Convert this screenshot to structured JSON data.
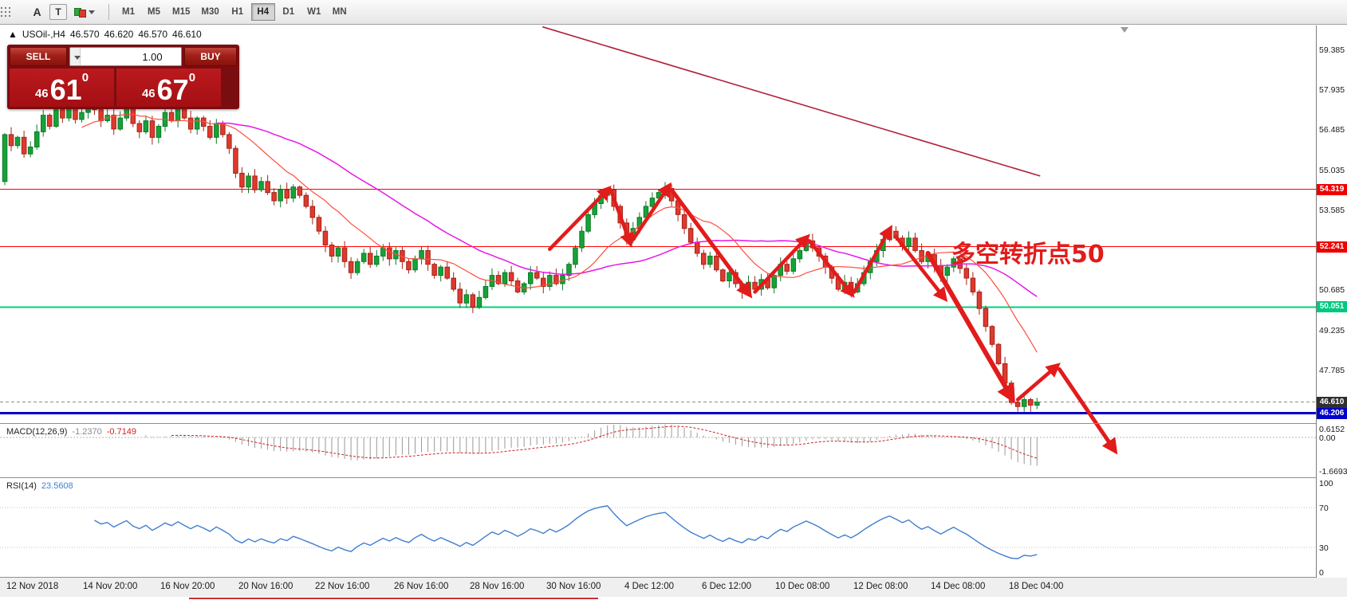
{
  "toolbar": {
    "icon_a": "A",
    "icon_t": "T",
    "timeframes": [
      "M1",
      "M5",
      "M15",
      "M30",
      "H1",
      "H4",
      "D1",
      "W1",
      "MN"
    ],
    "active_timeframe": "H4"
  },
  "symbol_header": {
    "arrow": "▲",
    "symbol": "USOil-,H4",
    "open": "46.570",
    "high": "46.620",
    "low": "46.570",
    "close": "46.610"
  },
  "trade_widget": {
    "sell_label": "SELL",
    "buy_label": "BUY",
    "volume": "1.00",
    "sell_small": "46",
    "sell_big": "61",
    "sell_sup": "0",
    "buy_small": "46",
    "buy_big": "67",
    "buy_sup": "0"
  },
  "annotation": {
    "text": "多空转折点50"
  },
  "price_axis": {
    "labels": [
      "59.385",
      "57.935",
      "56.485",
      "55.035",
      "53.585",
      "52.135",
      "50.685",
      "49.235",
      "47.785",
      "46.335"
    ],
    "chips": [
      {
        "value": "54.319",
        "price": 54.319,
        "bg": "#ee0000",
        "fg": "#ffffff"
      },
      {
        "value": "52.241",
        "price": 52.241,
        "bg": "#ee0000",
        "fg": "#ffffff"
      },
      {
        "value": "50.051",
        "price": 50.051,
        "bg": "#00c87d",
        "fg": "#ffffff"
      },
      {
        "value": "46.610",
        "price": 46.61,
        "bg": "#2f2f2f",
        "fg": "#ffffff"
      },
      {
        "value": "46.206",
        "price": 46.206,
        "bg": "#0000cc",
        "fg": "#ffffff"
      }
    ]
  },
  "chart_data": {
    "type": "candlestick",
    "symbol": "USOil-",
    "timeframe": "H4",
    "price_min": 45.85,
    "price_max": 60.25,
    "first_open": 54.6,
    "span_frac": 0.79,
    "up_color": "#16a237",
    "down_color": "#de3a2e",
    "closes": [
      56.3,
      55.9,
      56.2,
      55.6,
      55.85,
      56.4,
      57.0,
      56.6,
      57.2,
      56.9,
      57.4,
      56.85,
      57.1,
      57.6,
      57.2,
      56.8,
      57.0,
      56.5,
      56.9,
      57.3,
      56.7,
      56.4,
      56.8,
      56.2,
      56.6,
      57.1,
      56.8,
      57.3,
      56.9,
      56.5,
      56.9,
      56.6,
      56.2,
      56.7,
      56.3,
      55.8,
      54.9,
      54.4,
      54.8,
      54.3,
      54.6,
      54.2,
      53.9,
      54.3,
      54.0,
      54.4,
      54.1,
      53.7,
      53.3,
      52.8,
      52.3,
      51.9,
      52.2,
      51.7,
      51.3,
      51.7,
      52.0,
      51.6,
      51.9,
      52.2,
      51.8,
      52.1,
      51.7,
      51.4,
      51.8,
      52.1,
      51.6,
      51.2,
      51.5,
      51.1,
      50.7,
      50.2,
      50.5,
      50.05,
      50.4,
      50.8,
      51.2,
      50.9,
      51.3,
      51.0,
      50.6,
      50.9,
      51.3,
      51.1,
      50.8,
      51.2,
      50.9,
      51.2,
      51.6,
      52.2,
      52.8,
      53.4,
      53.8,
      54.1,
      54.3,
      53.7,
      53.1,
      52.5,
      52.9,
      53.3,
      53.7,
      54.0,
      54.2,
      54.35,
      53.9,
      53.4,
      52.9,
      52.4,
      52.0,
      51.6,
      51.9,
      51.4,
      51.0,
      51.3,
      50.9,
      50.6,
      50.95,
      50.7,
      51.05,
      50.75,
      51.2,
      51.6,
      51.35,
      51.8,
      52.1,
      52.45,
      52.2,
      51.9,
      51.5,
      51.1,
      50.7,
      50.95,
      50.6,
      50.9,
      51.3,
      51.7,
      52.1,
      52.5,
      52.8,
      52.55,
      52.25,
      52.55,
      52.1,
      51.7,
      51.95,
      51.55,
      51.2,
      51.5,
      51.8,
      51.45,
      51.1,
      50.6,
      50.0,
      49.35,
      48.7,
      48.0,
      47.3,
      46.6,
      46.45,
      46.7,
      46.5,
      46.61
    ],
    "h_lines": [
      {
        "price": 54.319,
        "color": "#ff0000",
        "width": 1.2
      },
      {
        "price": 52.241,
        "color": "#ff0000",
        "width": 1.2
      },
      {
        "price": 50.051,
        "color": "#00d17e",
        "width": 1.8
      },
      {
        "price": 46.61,
        "color": "#8c8c8c",
        "width": 1,
        "dash": "4,3"
      },
      {
        "price": 46.206,
        "color": "#0000cc",
        "width": 3
      }
    ],
    "trendline": {
      "color": "#b12038",
      "width": 1.6,
      "from": [
        0.412,
        60.2
      ],
      "to": [
        0.79,
        54.8
      ]
    },
    "ma_fast": {
      "period": 13,
      "color": "#ff4d3d"
    },
    "ma_slow": {
      "period": 34,
      "color": "#e816e8"
    },
    "arrow_color": "#e21b1b",
    "arrows": [
      {
        "from": [
          85,
          52.15
        ],
        "to": [
          94,
          54.3
        ],
        "w": 4.5
      },
      {
        "from": [
          94.5,
          54.3
        ],
        "to": [
          97.5,
          52.4
        ],
        "w": 4.5
      },
      {
        "from": [
          98,
          52.5
        ],
        "to": [
          103.5,
          54.4
        ],
        "w": 4.5
      },
      {
        "from": [
          104,
          54.3
        ],
        "to": [
          116,
          50.55
        ],
        "w": 5
      },
      {
        "from": [
          117,
          50.6
        ],
        "to": [
          125,
          52.55
        ],
        "w": 4.5
      },
      {
        "from": [
          125.5,
          52.45
        ],
        "to": [
          132,
          50.55
        ],
        "w": 4.5
      },
      {
        "from": [
          132.5,
          50.6
        ],
        "to": [
          138,
          52.85
        ],
        "w": 4.5
      },
      {
        "from": [
          139,
          52.6
        ],
        "to": [
          146.5,
          50.4
        ],
        "w": 4.5
      },
      {
        "from": [
          144,
          52.0
        ],
        "to": [
          157,
          46.8
        ],
        "w": 6
      },
      {
        "from": [
          158,
          46.7
        ],
        "to": [
          164,
          47.9
        ],
        "w": 4.5
      },
      {
        "from": [
          164.5,
          47.8
        ],
        "to": [
          173,
          44.9
        ],
        "w": 5
      }
    ],
    "time_labels": [
      {
        "t": "12 Nov 2018",
        "f": 0.005
      },
      {
        "t": "14 Nov 20:00",
        "f": 0.063
      },
      {
        "t": "16 Nov 20:00",
        "f": 0.122
      },
      {
        "t": "20 Nov 16:00",
        "f": 0.181
      },
      {
        "t": "22 Nov 16:00",
        "f": 0.239
      },
      {
        "t": "26 Nov 16:00",
        "f": 0.299
      },
      {
        "t": "28 Nov 16:00",
        "f": 0.357
      },
      {
        "t": "30 Nov 16:00",
        "f": 0.415
      },
      {
        "t": "4 Dec 12:00",
        "f": 0.474
      },
      {
        "t": "6 Dec 12:00",
        "f": 0.533
      },
      {
        "t": "10 Dec 08:00",
        "f": 0.589
      },
      {
        "t": "12 Dec 08:00",
        "f": 0.648
      },
      {
        "t": "14 Dec 08:00",
        "f": 0.707
      },
      {
        "t": "18 Dec 04:00",
        "f": 0.766
      }
    ]
  },
  "macd_panel": {
    "title": "MACD(12,26,9)",
    "main_value": "-1.2370",
    "signal_value": "-0.7149",
    "axis_top": "0.6152",
    "axis_zero": "0.00",
    "axis_bottom": "-1.6693",
    "vmax": 0.65,
    "vmin": -1.95
  },
  "rsi_panel": {
    "title": "RSI(14)",
    "value": "23.5608",
    "axis_labels": [
      "100",
      "70",
      "30",
      "0"
    ],
    "levels": [
      70,
      30
    ]
  }
}
